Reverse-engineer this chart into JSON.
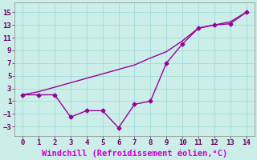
{
  "x": [
    0,
    1,
    2,
    3,
    4,
    5,
    6,
    7,
    8,
    9,
    10,
    11,
    12,
    13,
    14
  ],
  "y_irregular": [
    2,
    2,
    2,
    -1.5,
    -0.5,
    -0.5,
    -3.2,
    0.5,
    1,
    7,
    10,
    12.5,
    13,
    13.2,
    15
  ],
  "y_linear": [
    2,
    2.5,
    3.2,
    3.9,
    4.6,
    5.3,
    6.0,
    6.7,
    7.8,
    8.8,
    10.5,
    12.5,
    13.0,
    13.5,
    15
  ],
  "line_color": "#990099",
  "bg_color": "#cceee8",
  "grid_color": "#aadddd",
  "xlabel": "Windchill (Refroidissement éolien,°C)",
  "xlabel_color": "#cc00cc",
  "xlabel_fontsize": 7.5,
  "xlim": [
    -0.5,
    14.5
  ],
  "ylim": [
    -4.5,
    16.5
  ],
  "xticks": [
    0,
    1,
    2,
    3,
    4,
    5,
    6,
    7,
    8,
    9,
    10,
    11,
    12,
    13,
    14
  ],
  "yticks": [
    -3,
    -1,
    1,
    3,
    5,
    7,
    9,
    11,
    13,
    15
  ],
  "tick_fontsize": 6.5,
  "marker": "D",
  "markersize": 2.5,
  "linewidth": 1.0
}
